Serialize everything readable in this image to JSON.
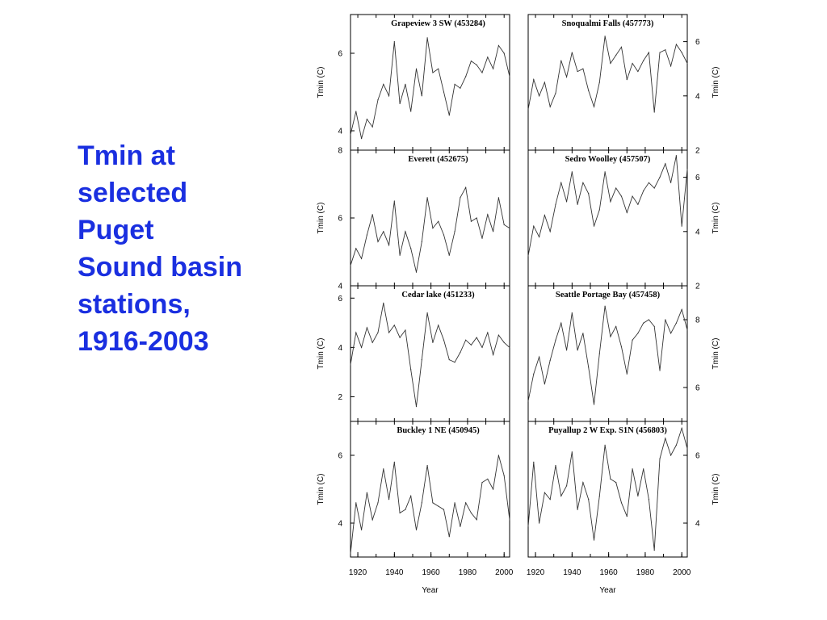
{
  "slide": {
    "title": "Tmin at\nselected\nPuget\nSound basin\nstations,\n1916-2003"
  },
  "colors": {
    "title": "#1a2fe0",
    "series": "#333333"
  },
  "chart_data": [
    {
      "type": "line",
      "title": "Grapeview 3 SW (453284)",
      "ylabel": "Tmin (C)",
      "xlabel": "",
      "y_axis_side": "left",
      "ylim": [
        3.5,
        7.0
      ],
      "yticks": [
        4,
        6
      ],
      "xlim": [
        1916,
        2003
      ],
      "xticks": [],
      "x": [
        1916,
        1919,
        1922,
        1925,
        1928,
        1931,
        1934,
        1937,
        1940,
        1943,
        1946,
        1949,
        1952,
        1955,
        1958,
        1961,
        1964,
        1967,
        1970,
        1973,
        1976,
        1979,
        1982,
        1985,
        1988,
        1991,
        1994,
        1997,
        2000,
        2003
      ],
      "values": [
        3.9,
        4.5,
        3.8,
        4.3,
        4.1,
        4.8,
        5.2,
        4.9,
        6.3,
        4.7,
        5.2,
        4.5,
        5.6,
        4.9,
        6.4,
        5.5,
        5.6,
        5.0,
        4.4,
        5.2,
        5.1,
        5.4,
        5.8,
        5.7,
        5.5,
        5.9,
        5.6,
        6.2,
        6.0,
        5.4
      ]
    },
    {
      "type": "line",
      "title": "Snoqualmi Falls (457773)",
      "ylabel": "Tmin (C)",
      "xlabel": "",
      "y_axis_side": "right",
      "ylim": [
        2.0,
        7.0
      ],
      "yticks": [
        2,
        4,
        6
      ],
      "xlim": [
        1916,
        2003
      ],
      "xticks": [],
      "x": [
        1916,
        1919,
        1922,
        1925,
        1928,
        1931,
        1934,
        1937,
        1940,
        1943,
        1946,
        1949,
        1952,
        1955,
        1958,
        1961,
        1964,
        1967,
        1970,
        1973,
        1976,
        1979,
        1982,
        1985,
        1988,
        1991,
        1994,
        1997,
        2000,
        2003
      ],
      "values": [
        3.5,
        4.6,
        4.0,
        4.5,
        3.6,
        4.1,
        5.3,
        4.7,
        5.6,
        4.9,
        5.0,
        4.2,
        3.6,
        4.5,
        6.2,
        5.2,
        5.5,
        5.8,
        4.6,
        5.2,
        4.9,
        5.3,
        5.6,
        3.4,
        5.6,
        5.7,
        5.1,
        5.9,
        5.6,
        5.2
      ]
    },
    {
      "type": "line",
      "title": "Everett (452675)",
      "ylabel": "Tmin (C)",
      "xlabel": "",
      "y_axis_side": "left",
      "ylim": [
        4.0,
        8.0
      ],
      "yticks": [
        4,
        6,
        8
      ],
      "xlim": [
        1916,
        2003
      ],
      "xticks": [],
      "x": [
        1916,
        1919,
        1922,
        1925,
        1928,
        1931,
        1934,
        1937,
        1940,
        1943,
        1946,
        1949,
        1952,
        1955,
        1958,
        1961,
        1964,
        1967,
        1970,
        1973,
        1976,
        1979,
        1982,
        1985,
        1988,
        1991,
        1994,
        1997,
        2000,
        2003
      ],
      "values": [
        4.6,
        5.1,
        4.8,
        5.5,
        6.1,
        5.3,
        5.6,
        5.2,
        6.5,
        4.9,
        5.6,
        5.1,
        4.4,
        5.3,
        6.6,
        5.7,
        5.9,
        5.5,
        4.9,
        5.6,
        6.6,
        6.9,
        5.9,
        6.0,
        5.4,
        6.1,
        5.6,
        6.6,
        5.8,
        5.7
      ]
    },
    {
      "type": "line",
      "title": "Sedro Woolley (457507)",
      "ylabel": "Tmin (C)",
      "xlabel": "",
      "y_axis_side": "right",
      "ylim": [
        2.0,
        7.0
      ],
      "yticks": [
        2,
        4,
        6
      ],
      "xlim": [
        1916,
        2003
      ],
      "xticks": [],
      "x": [
        1916,
        1919,
        1922,
        1925,
        1928,
        1931,
        1934,
        1937,
        1940,
        1943,
        1946,
        1949,
        1952,
        1955,
        1958,
        1961,
        1964,
        1967,
        1970,
        1973,
        1976,
        1979,
        1982,
        1985,
        1988,
        1991,
        1994,
        1997,
        2000,
        2003
      ],
      "values": [
        3.1,
        4.2,
        3.8,
        4.6,
        4.0,
        5.0,
        5.8,
        5.1,
        6.2,
        5.0,
        5.8,
        5.4,
        4.2,
        4.8,
        6.2,
        5.1,
        5.6,
        5.3,
        4.7,
        5.3,
        5.0,
        5.5,
        5.8,
        5.6,
        6.0,
        6.5,
        5.8,
        6.8,
        4.2,
        6.3
      ]
    },
    {
      "type": "line",
      "title": "Cedar lake (451233)",
      "ylabel": "Tmin (C)",
      "xlabel": "",
      "y_axis_side": "left",
      "ylim": [
        1.0,
        6.5
      ],
      "yticks": [
        2,
        4,
        6
      ],
      "xlim": [
        1916,
        2003
      ],
      "xticks": [],
      "x": [
        1916,
        1919,
        1922,
        1925,
        1928,
        1931,
        1934,
        1937,
        1940,
        1943,
        1946,
        1949,
        1952,
        1955,
        1958,
        1961,
        1964,
        1967,
        1970,
        1973,
        1976,
        1979,
        1982,
        1985,
        1988,
        1991,
        1994,
        1997,
        2000,
        2003
      ],
      "values": [
        3.3,
        4.6,
        4.0,
        4.8,
        4.2,
        4.6,
        5.8,
        4.6,
        4.9,
        4.4,
        4.7,
        3.1,
        1.6,
        3.5,
        5.4,
        4.2,
        4.9,
        4.3,
        3.5,
        3.4,
        3.8,
        4.3,
        4.1,
        4.4,
        4.0,
        4.6,
        3.7,
        4.5,
        4.2,
        4.0
      ]
    },
    {
      "type": "line",
      "title": "Seattle Portage Bay (457458)",
      "ylabel": "Tmin (C)",
      "xlabel": "",
      "y_axis_side": "right",
      "ylim": [
        5.0,
        9.0
      ],
      "yticks": [
        6,
        8
      ],
      "xlim": [
        1916,
        2003
      ],
      "xticks": [],
      "x": [
        1916,
        1919,
        1922,
        1925,
        1928,
        1931,
        1934,
        1937,
        1940,
        1943,
        1946,
        1949,
        1952,
        1955,
        1958,
        1961,
        1964,
        1967,
        1970,
        1973,
        1976,
        1979,
        1982,
        1985,
        1988,
        1991,
        1994,
        1997,
        2000,
        2003
      ],
      "values": [
        5.6,
        6.4,
        6.9,
        6.1,
        6.8,
        7.4,
        7.9,
        7.1,
        8.2,
        7.1,
        7.6,
        6.6,
        5.5,
        7.0,
        8.4,
        7.5,
        7.8,
        7.2,
        6.4,
        7.4,
        7.6,
        7.9,
        8.0,
        7.8,
        6.5,
        8.0,
        7.6,
        7.9,
        8.3,
        7.7
      ]
    },
    {
      "type": "line",
      "title": "Buckley 1 NE (450945)",
      "ylabel": "Tmin (C)",
      "xlabel": "Year",
      "y_axis_side": "left",
      "ylim": [
        3.0,
        7.0
      ],
      "yticks": [
        4,
        6
      ],
      "xlim": [
        1916,
        2003
      ],
      "xticks": [
        1920,
        1940,
        1960,
        1980,
        2000
      ],
      "x": [
        1916,
        1919,
        1922,
        1925,
        1928,
        1931,
        1934,
        1937,
        1940,
        1943,
        1946,
        1949,
        1952,
        1955,
        1958,
        1961,
        1964,
        1967,
        1970,
        1973,
        1976,
        1979,
        1982,
        1985,
        1988,
        1991,
        1994,
        1997,
        2000,
        2003
      ],
      "values": [
        3.1,
        4.6,
        3.8,
        4.9,
        4.1,
        4.6,
        5.6,
        4.7,
        5.8,
        4.3,
        4.4,
        4.8,
        3.8,
        4.6,
        5.7,
        4.6,
        4.5,
        4.4,
        3.6,
        4.6,
        3.9,
        4.6,
        4.3,
        4.1,
        5.2,
        5.3,
        5.0,
        6.0,
        5.4,
        4.1
      ]
    },
    {
      "type": "line",
      "title": "Puyallup 2 W Exp. S1N (456803)",
      "ylabel": "Tmin (C)",
      "xlabel": "Year",
      "y_axis_side": "right",
      "ylim": [
        3.0,
        7.0
      ],
      "yticks": [
        4,
        6
      ],
      "xlim": [
        1916,
        2003
      ],
      "xticks": [
        1920,
        1940,
        1960,
        1980,
        2000
      ],
      "x": [
        1916,
        1919,
        1922,
        1925,
        1928,
        1931,
        1934,
        1937,
        1940,
        1943,
        1946,
        1949,
        1952,
        1955,
        1958,
        1961,
        1964,
        1967,
        1970,
        1973,
        1976,
        1979,
        1982,
        1985,
        1988,
        1991,
        1994,
        1997,
        2000,
        2003
      ],
      "values": [
        3.9,
        5.8,
        4.0,
        4.9,
        4.7,
        5.7,
        4.8,
        5.1,
        6.1,
        4.4,
        5.2,
        4.7,
        3.5,
        4.8,
        6.3,
        5.3,
        5.2,
        4.6,
        4.2,
        5.6,
        4.8,
        5.6,
        4.7,
        3.2,
        5.9,
        6.5,
        6.0,
        6.3,
        6.8,
        6.2
      ]
    }
  ]
}
